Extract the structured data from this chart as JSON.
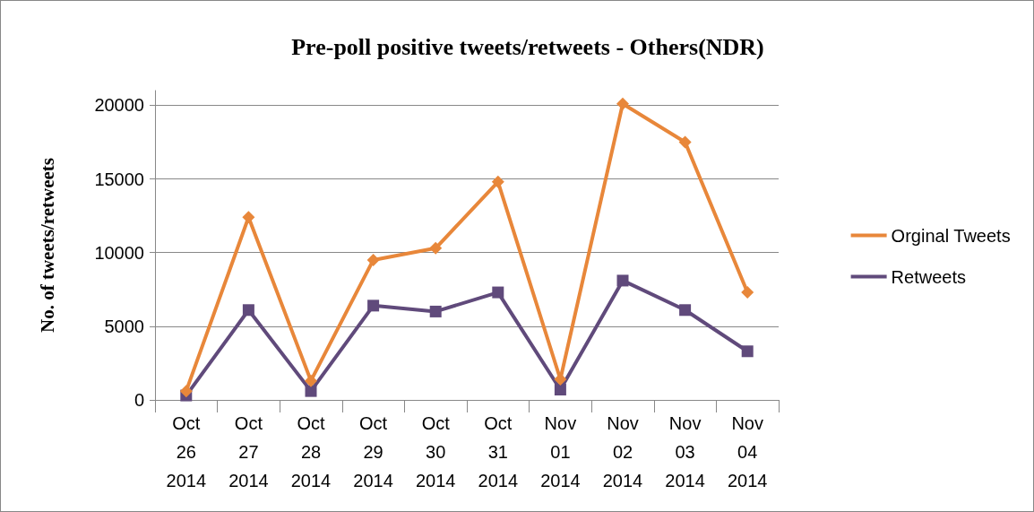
{
  "chart_data": {
    "type": "line",
    "title": "Pre-poll positive tweets/retweets - Others(NDR)",
    "ylabel": "No. of tweets/retweets",
    "categories": [
      "Oct\n26\n2014",
      "Oct\n27\n2014",
      "Oct\n28\n2014",
      "Oct\n29\n2014",
      "Oct\n30\n2014",
      "Oct\n31\n2014",
      "Nov\n01\n2014",
      "Nov\n02\n2014",
      "Nov\n03\n2014",
      "Nov\n04\n2014"
    ],
    "series": [
      {
        "name": "Orginal Tweets",
        "color": "#e8873a",
        "marker": "diamond",
        "values": [
          600,
          12400,
          1300,
          9500,
          10300,
          14800,
          1400,
          20100,
          17500,
          7300
        ]
      },
      {
        "name": "Retweets",
        "color": "#604a7b",
        "marker": "square",
        "values": [
          300,
          6100,
          600,
          6400,
          6000,
          7300,
          700,
          8100,
          6100,
          3300
        ]
      }
    ],
    "ylim": [
      0,
      21000
    ],
    "yticks": [
      0,
      5000,
      10000,
      15000,
      20000
    ],
    "grid": "y",
    "legend": "right",
    "line_style": "solid"
  }
}
